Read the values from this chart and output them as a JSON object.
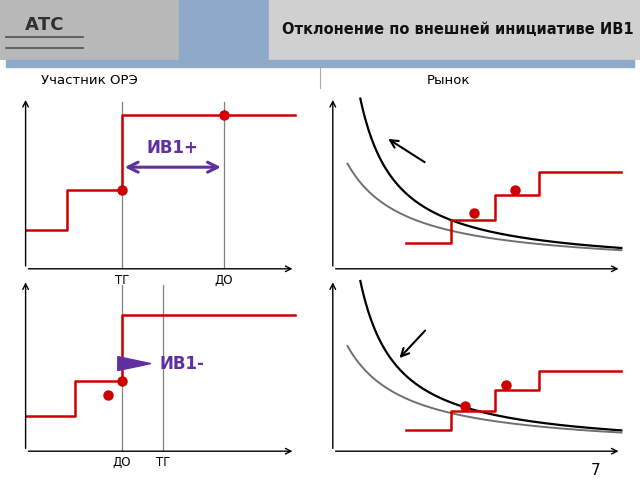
{
  "title": "Отклонение по внешней инициативе ИВ1",
  "label_participant": "Участник ОРЭ",
  "label_market": "Рынок",
  "label_tg": "ТГ",
  "label_do": "ДО",
  "label_iv1plus": "ИВ1+",
  "label_iv1minus": "ИВ1-",
  "page_number": "7",
  "header_logo_bg": "#b0b0b0",
  "header_blue_bg": "#8faac8",
  "header_title_bg": "#c8c8c8",
  "red_color": "#cc0000",
  "purple_color": "#6030a0",
  "black_color": "#000000",
  "gray_color": "#888888",
  "bg_white": "#ffffff",
  "divider_color": "#8faac8"
}
